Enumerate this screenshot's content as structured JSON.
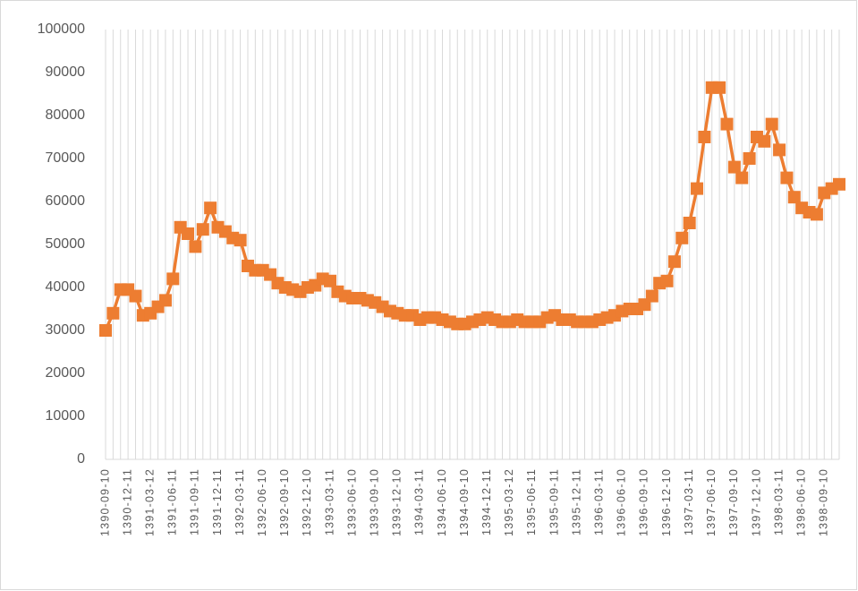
{
  "chart_data": {
    "type": "line",
    "categories": [
      "1390-09-10",
      null,
      null,
      "1390-12-11",
      null,
      null,
      "1391-03-12",
      null,
      null,
      "1391-06-11",
      null,
      null,
      "1391-09-11",
      null,
      null,
      "1391-12-11",
      null,
      null,
      "1392-03-11",
      null,
      null,
      "1392-06-10",
      null,
      null,
      "1392-09-10",
      null,
      null,
      "1392-12-10",
      null,
      null,
      "1393-03-11",
      null,
      null,
      "1393-06-10",
      null,
      null,
      "1393-09-10",
      null,
      null,
      "1393-12-10",
      null,
      null,
      "1394-03-11",
      null,
      null,
      "1394-06-10",
      null,
      null,
      "1394-09-10",
      null,
      null,
      "1394-12-11",
      null,
      null,
      "1395-03-12",
      null,
      null,
      "1395-06-11",
      null,
      null,
      "1395-09-11",
      null,
      null,
      "1395-12-11",
      null,
      null,
      "1396-03-11",
      null,
      null,
      "1396-06-10",
      null,
      null,
      "1396-09-10",
      null,
      null,
      "1396-12-10",
      null,
      null,
      "1397-03-11",
      null,
      null,
      "1397-06-10",
      null,
      null,
      "1397-09-10",
      null,
      null,
      "1397-12-10",
      null,
      null,
      "1398-03-11",
      null,
      null,
      "1398-06-10",
      null,
      null,
      "1398-09-10",
      null,
      null
    ],
    "values": [
      30000,
      34000,
      39500,
      39500,
      38000,
      33500,
      34000,
      35500,
      37000,
      42000,
      54000,
      52500,
      49500,
      53500,
      58500,
      54000,
      53000,
      51500,
      51000,
      45000,
      44000,
      44000,
      43000,
      41000,
      40000,
      39500,
      39000,
      40000,
      40500,
      42000,
      41500,
      39000,
      38000,
      37500,
      37500,
      37000,
      36500,
      35500,
      34500,
      34000,
      33500,
      33500,
      32500,
      33000,
      33000,
      32500,
      32000,
      31500,
      31500,
      32000,
      32500,
      33000,
      32500,
      32000,
      32000,
      32500,
      32000,
      32000,
      32000,
      33000,
      33500,
      32500,
      32500,
      32000,
      32000,
      32000,
      32500,
      33000,
      33500,
      34500,
      35000,
      35000,
      36000,
      38000,
      41000,
      41500,
      46000,
      51500,
      55000,
      63000,
      75000,
      86500,
      86500,
      78000,
      68000,
      65500,
      70000,
      75000,
      74000,
      78000,
      72000,
      65500,
      61000,
      58500,
      57500,
      57000,
      62000,
      63000,
      64000
    ],
    "color": "#ed7d31",
    "ylim": [
      0,
      100000
    ],
    "yticks": [
      0,
      10000,
      20000,
      30000,
      40000,
      50000,
      60000,
      70000,
      80000,
      90000,
      100000
    ],
    "xgrid": true
  }
}
